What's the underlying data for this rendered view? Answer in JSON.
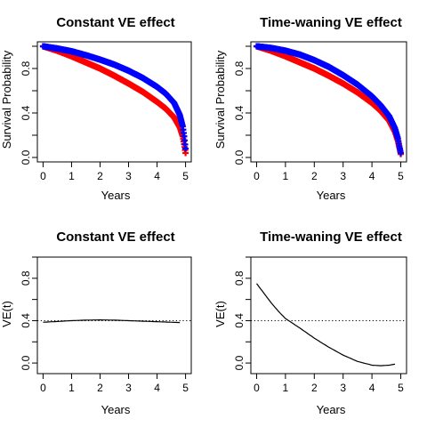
{
  "chart_data": [
    {
      "type": "scatter",
      "title": "Constant VE effect",
      "xlabel": "Years",
      "ylabel": "Survival Probability",
      "xlim": [
        0,
        5
      ],
      "ylim": [
        0,
        1
      ],
      "xticks": [
        0,
        1,
        2,
        3,
        4,
        5
      ],
      "yticks": [
        0.0,
        0.4,
        0.8
      ],
      "ytick_labels": [
        "0.0",
        "0.4",
        "0.8"
      ],
      "series": [
        {
          "color": "#ff0000",
          "x": [
            0,
            0.5,
            1,
            1.5,
            2,
            2.5,
            3,
            3.5,
            4,
            4.3,
            4.6,
            4.8,
            4.9,
            4.95,
            5.0
          ],
          "y": [
            1.0,
            0.96,
            0.91,
            0.855,
            0.8,
            0.735,
            0.665,
            0.59,
            0.5,
            0.44,
            0.36,
            0.27,
            0.19,
            0.12,
            0.04
          ]
        },
        {
          "color": "#0000ff",
          "x": [
            0,
            0.5,
            1,
            1.5,
            2,
            2.5,
            3,
            3.5,
            4,
            4.3,
            4.6,
            4.8,
            4.9,
            4.95,
            5.0
          ],
          "y": [
            1.0,
            0.98,
            0.955,
            0.92,
            0.88,
            0.835,
            0.78,
            0.715,
            0.635,
            0.575,
            0.49,
            0.38,
            0.28,
            0.19,
            0.08
          ]
        }
      ]
    },
    {
      "type": "scatter",
      "title": "Time-waning VE effect",
      "xlabel": "Years",
      "ylabel": "Survival Probability",
      "xlim": [
        0,
        5
      ],
      "ylim": [
        0,
        1
      ],
      "xticks": [
        0,
        1,
        2,
        3,
        4,
        5
      ],
      "yticks": [
        0.0,
        0.4,
        0.8
      ],
      "ytick_labels": [
        "0.0",
        "0.4",
        "0.8"
      ],
      "series": [
        {
          "color": "#ff0000",
          "x": [
            0,
            0.5,
            1,
            1.5,
            2,
            2.5,
            3,
            3.5,
            4,
            4.3,
            4.6,
            4.8,
            4.9,
            4.95,
            5.0
          ],
          "y": [
            1.0,
            0.96,
            0.91,
            0.855,
            0.8,
            0.735,
            0.665,
            0.585,
            0.49,
            0.42,
            0.33,
            0.23,
            0.15,
            0.09,
            0.03
          ]
        },
        {
          "color": "#0000ff",
          "x": [
            0,
            0.5,
            1,
            1.5,
            2,
            2.5,
            3,
            3.5,
            4,
            4.3,
            4.6,
            4.8,
            4.9,
            4.95,
            5.0
          ],
          "y": [
            1.0,
            0.985,
            0.96,
            0.925,
            0.875,
            0.815,
            0.74,
            0.655,
            0.55,
            0.47,
            0.37,
            0.26,
            0.17,
            0.1,
            0.04
          ]
        }
      ]
    },
    {
      "type": "line",
      "title": "Constant VE effect",
      "xlabel": "Years",
      "ylabel": "VE(t)",
      "xlim": [
        0,
        5
      ],
      "ylim": [
        -0.1,
        1.0
      ],
      "xticks": [
        0,
        1,
        2,
        3,
        4,
        5
      ],
      "yticks": [
        0.0,
        0.4,
        0.8
      ],
      "ytick_labels": [
        "0.0",
        "0.4",
        "0.8"
      ],
      "reference_line": 0.4,
      "series": [
        {
          "color": "#000000",
          "x": [
            0,
            0.5,
            1,
            1.5,
            2,
            2.5,
            3,
            3.5,
            4,
            4.5,
            4.8
          ],
          "y": [
            0.385,
            0.392,
            0.4,
            0.405,
            0.407,
            0.405,
            0.4,
            0.395,
            0.39,
            0.385,
            0.382
          ]
        }
      ]
    },
    {
      "type": "line",
      "title": "Time-waning VE effect",
      "xlabel": "Years",
      "ylabel": "VE(t)",
      "xlim": [
        0,
        5
      ],
      "ylim": [
        -0.1,
        1.0
      ],
      "xticks": [
        0,
        1,
        2,
        3,
        4,
        5
      ],
      "yticks": [
        0.0,
        0.4,
        0.8
      ],
      "ytick_labels": [
        "0.0",
        "0.4",
        "0.8"
      ],
      "reference_line": 0.4,
      "series": [
        {
          "color": "#000000",
          "x": [
            0,
            0.25,
            0.5,
            0.75,
            1.0,
            1.5,
            2.0,
            2.5,
            3.0,
            3.5,
            4.0,
            4.3,
            4.6,
            4.8
          ],
          "y": [
            0.75,
            0.66,
            0.57,
            0.49,
            0.42,
            0.33,
            0.235,
            0.15,
            0.075,
            0.015,
            -0.02,
            -0.025,
            -0.02,
            -0.01
          ]
        }
      ]
    }
  ]
}
